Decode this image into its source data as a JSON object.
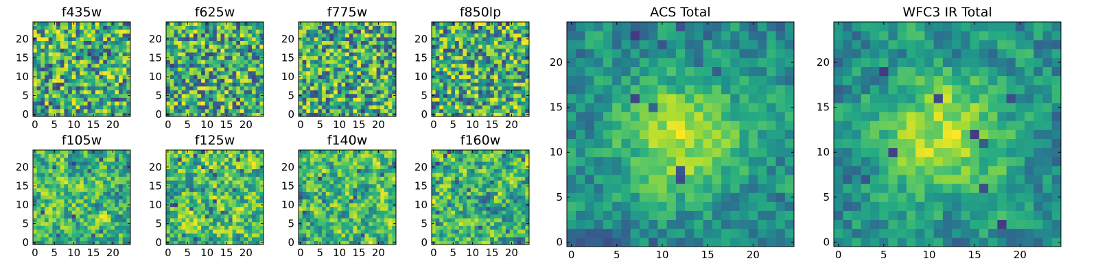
{
  "figure": {
    "description_colormap": "viridis",
    "colors": {
      "background": "#ffffff",
      "viridis_low": "#440154",
      "viridis_mid": "#21918c",
      "viridis_high": "#fde725"
    }
  },
  "chart_data": [
    {
      "type": "heatmap",
      "title": "f435w",
      "x_ticks": [
        "0",
        "5",
        "10",
        "15",
        "20"
      ],
      "y_ticks": [
        "0",
        "5",
        "10",
        "15",
        "20"
      ],
      "xlim": [
        -0.5,
        24.5
      ],
      "ylim": [
        -0.5,
        24.5
      ],
      "grid_size": 25,
      "texture": "noise",
      "seed": 11
    },
    {
      "type": "heatmap",
      "title": "f625w",
      "x_ticks": [
        "0",
        "5",
        "10",
        "15",
        "20"
      ],
      "y_ticks": [
        "0",
        "5",
        "10",
        "15",
        "20"
      ],
      "xlim": [
        -0.5,
        24.5
      ],
      "ylim": [
        -0.5,
        24.5
      ],
      "grid_size": 25,
      "texture": "noise",
      "seed": 23
    },
    {
      "type": "heatmap",
      "title": "f775w",
      "x_ticks": [
        "0",
        "5",
        "10",
        "15",
        "20"
      ],
      "y_ticks": [
        "0",
        "5",
        "10",
        "15",
        "20"
      ],
      "xlim": [
        -0.5,
        24.5
      ],
      "ylim": [
        -0.5,
        24.5
      ],
      "grid_size": 25,
      "texture": "noise",
      "seed": 37
    },
    {
      "type": "heatmap",
      "title": "f850lp",
      "x_ticks": [
        "0",
        "5",
        "10",
        "15",
        "20"
      ],
      "y_ticks": [
        "0",
        "5",
        "10",
        "15",
        "20"
      ],
      "xlim": [
        -0.5,
        24.5
      ],
      "ylim": [
        -0.5,
        24.5
      ],
      "grid_size": 25,
      "texture": "noise",
      "seed": 41
    },
    {
      "type": "heatmap",
      "title": "f105w",
      "x_ticks": [
        "0",
        "5",
        "10",
        "15",
        "20"
      ],
      "y_ticks": [
        "0",
        "5",
        "10",
        "15",
        "20"
      ],
      "xlim": [
        -0.5,
        24.5
      ],
      "ylim": [
        -0.5,
        24.5
      ],
      "grid_size": 25,
      "texture": "smooth",
      "seed": 53
    },
    {
      "type": "heatmap",
      "title": "f125w",
      "x_ticks": [
        "0",
        "5",
        "10",
        "15",
        "20"
      ],
      "y_ticks": [
        "0",
        "5",
        "10",
        "15",
        "20"
      ],
      "xlim": [
        -0.5,
        24.5
      ],
      "ylim": [
        -0.5,
        24.5
      ],
      "grid_size": 25,
      "texture": "smooth",
      "seed": 67
    },
    {
      "type": "heatmap",
      "title": "f140w",
      "x_ticks": [
        "0",
        "5",
        "10",
        "15",
        "20"
      ],
      "y_ticks": [
        "0",
        "5",
        "10",
        "15",
        "20"
      ],
      "xlim": [
        -0.5,
        24.5
      ],
      "ylim": [
        -0.5,
        24.5
      ],
      "grid_size": 25,
      "texture": "smooth",
      "seed": 79
    },
    {
      "type": "heatmap",
      "title": "f160w",
      "x_ticks": [
        "0",
        "5",
        "10",
        "15",
        "20"
      ],
      "y_ticks": [
        "0",
        "5",
        "10",
        "15",
        "20"
      ],
      "xlim": [
        -0.5,
        24.5
      ],
      "ylim": [
        -0.5,
        24.5
      ],
      "grid_size": 25,
      "texture": "smooth",
      "seed": 83
    },
    {
      "type": "heatmap",
      "title": "ACS Total",
      "x_ticks": [
        "0",
        "5",
        "10",
        "15",
        "20"
      ],
      "y_ticks": [
        "0",
        "5",
        "10",
        "15",
        "20"
      ],
      "xlim": [
        -0.5,
        24.5
      ],
      "ylim": [
        -0.5,
        24.5
      ],
      "grid_size": 25,
      "texture": "centered",
      "seed": 97
    },
    {
      "type": "heatmap",
      "title": "WFC3 IR Total",
      "x_ticks": [
        "0",
        "5",
        "10",
        "15",
        "20"
      ],
      "y_ticks": [
        "0",
        "5",
        "10",
        "15",
        "20"
      ],
      "xlim": [
        -0.5,
        24.5
      ],
      "ylim": [
        -0.5,
        24.5
      ],
      "grid_size": 25,
      "texture": "centered",
      "seed": 101
    }
  ]
}
